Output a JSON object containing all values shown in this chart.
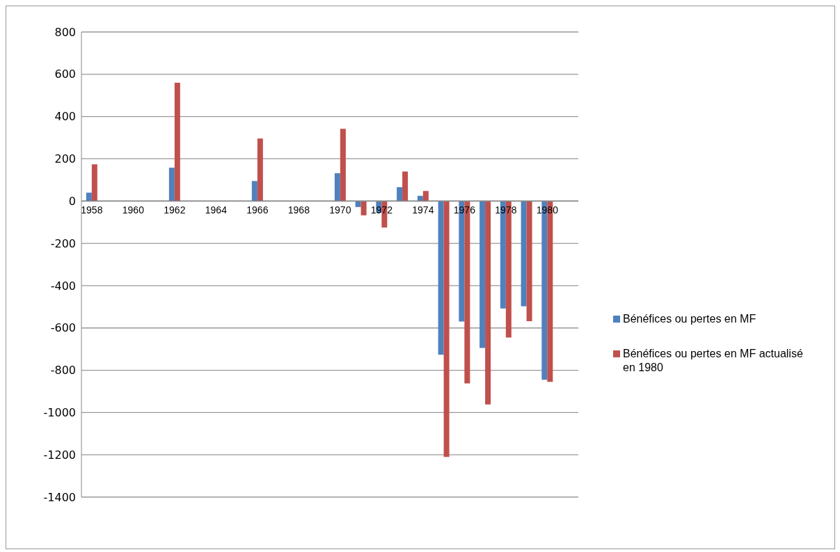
{
  "chart_data": {
    "type": "bar",
    "categories": [
      "1958",
      null,
      "1960",
      null,
      "1962",
      null,
      "1964",
      null,
      "1966",
      null,
      "1968",
      null,
      "1970",
      null,
      "1972",
      null,
      "1974",
      null,
      "1976",
      null,
      "1978",
      null,
      "1980",
      null
    ],
    "series": [
      {
        "name": "Bénéfices ou pertes en MF",
        "color": "#4f81bd",
        "values": [
          40,
          null,
          null,
          null,
          158,
          null,
          null,
          null,
          95,
          null,
          null,
          null,
          132,
          -28,
          -55,
          66,
          25,
          -727,
          -570,
          -695,
          -508,
          -497,
          -845,
          null
        ]
      },
      {
        "name": "Bénéfices ou pertes en MF actualisé en 1980",
        "color": "#c0504d",
        "values": [
          174,
          null,
          null,
          null,
          560,
          null,
          null,
          null,
          296,
          null,
          null,
          null,
          342,
          -67,
          -125,
          140,
          48,
          -1210,
          -862,
          -962,
          -645,
          -568,
          -855,
          null
        ]
      }
    ],
    "ylim": [
      -1400,
      800
    ],
    "yticks": [
      -1400,
      -1200,
      -1000,
      -800,
      -600,
      -400,
      -200,
      0,
      200,
      400,
      600,
      800
    ],
    "grid": "y",
    "legend": "right"
  }
}
